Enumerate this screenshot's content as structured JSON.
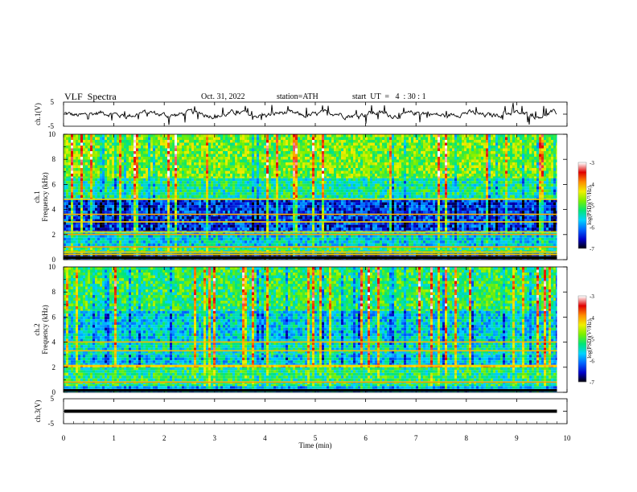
{
  "header": {
    "title": "VLF  Spectra",
    "date": "Oct. 31, 2022",
    "station": "station=ATH",
    "start": "start  UT  =   4  : 30 : 1"
  },
  "colorbar": {
    "label": "log(PSD)(V²/Hz)",
    "ticks": [
      "-3",
      "-4",
      "-5",
      "-6",
      "-7"
    ],
    "range": [
      -7,
      -3
    ],
    "colors": [
      "#000000",
      "#0000c8",
      "#0064ff",
      "#00d2ff",
      "#00e678",
      "#78f000",
      "#f0f000",
      "#ff8c00",
      "#e00000",
      "#ffffff"
    ]
  },
  "chart_data": [
    {
      "type": "line",
      "name": "waveform-ch1",
      "ylabel": "ch.1(V)",
      "ylim": [
        -5,
        5
      ],
      "yticks": [
        "5",
        "-5"
      ],
      "xlim": [
        0,
        10
      ],
      "description_level": 0,
      "color": "#000000"
    },
    {
      "type": "heatmap",
      "name": "spectrogram-ch1",
      "ylabel_channel": "ch.1",
      "ylabel": "Frequency  (kHz)",
      "ylim": [
        0,
        10
      ],
      "yticks": [
        "0",
        "2",
        "4",
        "6",
        "8",
        "10"
      ],
      "xlim": [
        0,
        9.8
      ],
      "bands": [
        {
          "f": [
            0,
            0.5
          ],
          "level": -6.6
        },
        {
          "f": [
            0.5,
            1.0
          ],
          "level": -5.2
        },
        {
          "f": [
            1.0,
            2.2
          ],
          "level": -5.6
        },
        {
          "f": [
            2.2,
            4.8
          ],
          "level": -6.3
        },
        {
          "f": [
            4.8,
            6.5
          ],
          "level": -5.3
        },
        {
          "f": [
            6.5,
            10
          ],
          "level": -4.8
        }
      ],
      "lines_kHz": [
        0.2,
        0.4,
        0.6,
        1.0,
        2.0,
        2.2,
        3.0,
        3.6,
        4.8
      ]
    },
    {
      "type": "heatmap",
      "name": "spectrogram-ch2",
      "ylabel_channel": "ch.2",
      "ylabel": "Frequency  (kHz)",
      "ylim": [
        0,
        10
      ],
      "yticks": [
        "0",
        "2",
        "4",
        "6",
        "8",
        "10"
      ],
      "xlim": [
        0,
        9.8
      ],
      "bands": [
        {
          "f": [
            0,
            0.5
          ],
          "level": -5.8
        },
        {
          "f": [
            0.5,
            2.0
          ],
          "level": -5.2
        },
        {
          "f": [
            2.0,
            2.2
          ],
          "level": -4.1
        },
        {
          "f": [
            2.2,
            3.0
          ],
          "level": -5.6
        },
        {
          "f": [
            3.0,
            4.0
          ],
          "level": -5.4
        },
        {
          "f": [
            4.0,
            6.5
          ],
          "level": -5.6
        },
        {
          "f": [
            6.5,
            10
          ],
          "level": -5.1
        }
      ],
      "lines_kHz": [
        0.8,
        2.1,
        3.3,
        4.0
      ]
    },
    {
      "type": "line",
      "name": "waveform-ch3",
      "ylabel": "ch.3(V)",
      "ylim": [
        -5,
        5
      ],
      "yticks": [
        "5",
        "-5"
      ],
      "xlim": [
        0,
        10
      ],
      "level": 0,
      "color": "#000000"
    }
  ],
  "xaxis": {
    "label": "Time  (min)",
    "range": [
      0,
      10
    ],
    "ticks": [
      "0",
      "1",
      "2",
      "3",
      "4",
      "5",
      "6",
      "7",
      "8",
      "9",
      "10"
    ]
  }
}
